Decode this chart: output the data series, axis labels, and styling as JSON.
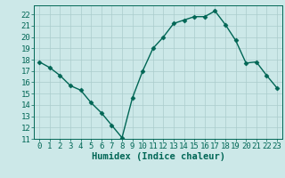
{
  "x": [
    0,
    1,
    2,
    3,
    4,
    5,
    6,
    7,
    8,
    9,
    10,
    11,
    12,
    13,
    14,
    15,
    16,
    17,
    18,
    19,
    20,
    21,
    22,
    23
  ],
  "y": [
    17.8,
    17.3,
    16.6,
    15.7,
    15.3,
    14.2,
    13.3,
    12.2,
    11.1,
    14.6,
    17.0,
    19.0,
    20.0,
    21.2,
    21.5,
    21.8,
    21.8,
    22.3,
    21.1,
    19.7,
    17.7,
    17.8,
    16.6,
    15.5
  ],
  "line_color": "#006655",
  "marker_color": "#006655",
  "bg_color": "#cce8e8",
  "grid_color": "#aacccc",
  "axis_label_color": "#006655",
  "tick_color": "#006655",
  "spine_color": "#006655",
  "xlabel": "Humidex (Indice chaleur)",
  "ylim": [
    11,
    22.8
  ],
  "xlim": [
    -0.5,
    23.5
  ],
  "yticks": [
    11,
    12,
    13,
    14,
    15,
    16,
    17,
    18,
    19,
    20,
    21,
    22
  ],
  "xticks": [
    0,
    1,
    2,
    3,
    4,
    5,
    6,
    7,
    8,
    9,
    10,
    11,
    12,
    13,
    14,
    15,
    16,
    17,
    18,
    19,
    20,
    21,
    22,
    23
  ],
  "xlabel_fontsize": 7.5,
  "tick_fontsize": 6.5,
  "linewidth": 1.0,
  "markersize": 2.5
}
